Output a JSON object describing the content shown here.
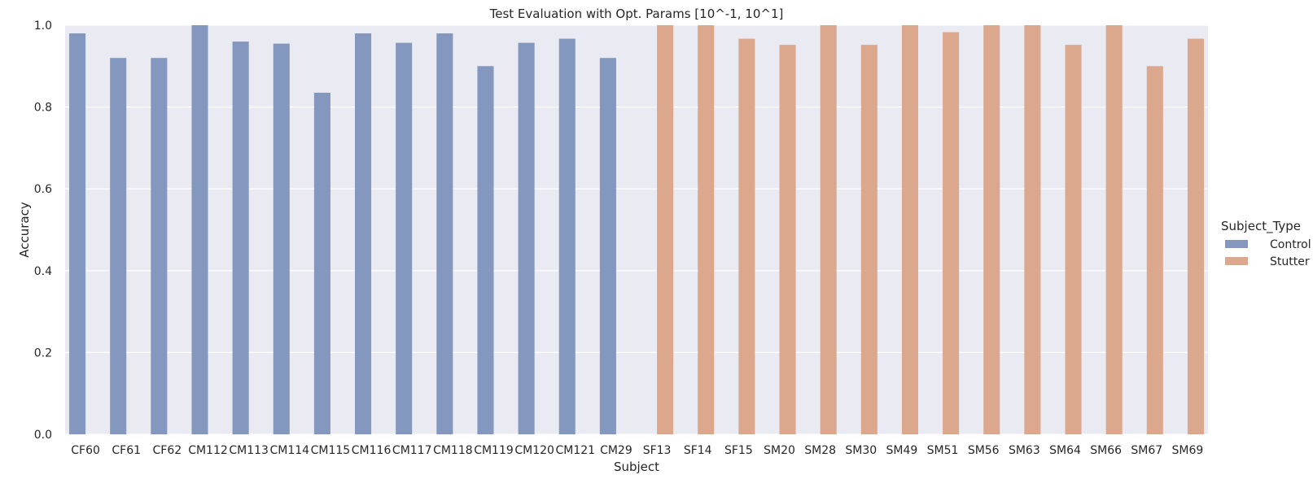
{
  "chart_data": {
    "type": "bar",
    "title": "Test Evaluation with Opt. Params [10^-1, 10^1]",
    "xlabel": "Subject",
    "ylabel": "Accuracy",
    "ylim": [
      0,
      1.0
    ],
    "yticks": [
      "0.0",
      "0.2",
      "0.4",
      "0.6",
      "0.8",
      "1.0"
    ],
    "grid": true,
    "legend": {
      "title": "Subject_Type",
      "placement": "right",
      "entries": [
        {
          "name": "Control",
          "color": "#8497bf"
        },
        {
          "name": "Stutter",
          "color": "#dba78d"
        }
      ]
    },
    "categories": [
      "CF60",
      "CF61",
      "CF62",
      "CM112",
      "CM113",
      "CM114",
      "CM115",
      "CM116",
      "CM117",
      "CM118",
      "CM119",
      "CM120",
      "CM121",
      "CM29",
      "SF13",
      "SF14",
      "SF15",
      "SM20",
      "SM28",
      "SM30",
      "SM49",
      "SM51",
      "SM56",
      "SM63",
      "SM64",
      "SM66",
      "SM67",
      "SM69"
    ],
    "series": [
      {
        "name": "Control",
        "color": "#8497bf",
        "values": [
          0.98,
          0.92,
          0.92,
          1.0,
          0.96,
          0.955,
          0.835,
          0.98,
          0.957,
          0.98,
          0.9,
          0.957,
          0.967,
          0.92,
          null,
          null,
          null,
          null,
          null,
          null,
          null,
          null,
          null,
          null,
          null,
          null,
          null,
          null
        ]
      },
      {
        "name": "Stutter",
        "color": "#dba78d",
        "values": [
          null,
          null,
          null,
          null,
          null,
          null,
          null,
          null,
          null,
          null,
          null,
          null,
          null,
          null,
          1.0,
          1.0,
          0.967,
          0.952,
          1.0,
          0.952,
          1.0,
          0.983,
          1.0,
          1.0,
          0.952,
          1.0,
          0.9,
          0.967
        ]
      }
    ],
    "colors": {
      "background": "#eaeaf2",
      "grid": "#ffffff"
    }
  }
}
